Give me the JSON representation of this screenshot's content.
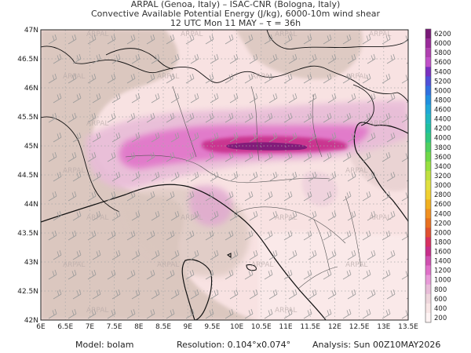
{
  "header": {
    "line1": "ARPAL (Genoa, Italy)  –  ISAC-CNR (Bologna, Italy)",
    "line2": "Convective Available Potential Energy (J/kg), 6000-10m wind shear",
    "line3": "12 UTC Mon 11 MAY  –  τ = 36h"
  },
  "footer": {
    "model": "Model: bolam",
    "resolution": "Resolution: 0.104°x0.074°",
    "analysis": "Analysis: Sun 00Z10MAY2026"
  },
  "watermark": "ARPAL",
  "lon_labels": [
    "6E",
    "6.5E",
    "7E",
    "7.5E",
    "8E",
    "8.5E",
    "9E",
    "9.5E",
    "10E",
    "10.5E",
    "11E",
    "11.5E",
    "12E",
    "12.5E",
    "13E",
    "13.5E"
  ],
  "lat_labels": [
    "47N",
    "46.5N",
    "46N",
    "45.5N",
    "45N",
    "44.5N",
    "44N",
    "43.5N",
    "43N",
    "42.5N",
    "42N"
  ],
  "colorbar": {
    "labels": [
      "6200",
      "6000",
      "5800",
      "5600",
      "5400",
      "5200",
      "5000",
      "4800",
      "4600",
      "4400",
      "4200",
      "4000",
      "3800",
      "3600",
      "3400",
      "3200",
      "3000",
      "2800",
      "2600",
      "2400",
      "2200",
      "2000",
      "1800",
      "1600",
      "1400",
      "1200",
      "1000",
      "800",
      "600",
      "400",
      "200"
    ],
    "colors": [
      "#7a1a78",
      "#9a2a9a",
      "#b040b0",
      "#c050c8",
      "#7a30c0",
      "#5050d8",
      "#3070e0",
      "#2090e0",
      "#20a8d8",
      "#20b8c0",
      "#20c0a0",
      "#30c880",
      "#50d060",
      "#70d848",
      "#98e040",
      "#c0e040",
      "#e0e040",
      "#f0d030",
      "#f0b020",
      "#f09020",
      "#e87020",
      "#e05030",
      "#d83060",
      "#c82e8a",
      "#d050b0",
      "#e070c8",
      "#e89ad8",
      "#e8bcd8",
      "#eed6dc",
      "#f8e6e6",
      "#fdf3f3"
    ]
  }
}
